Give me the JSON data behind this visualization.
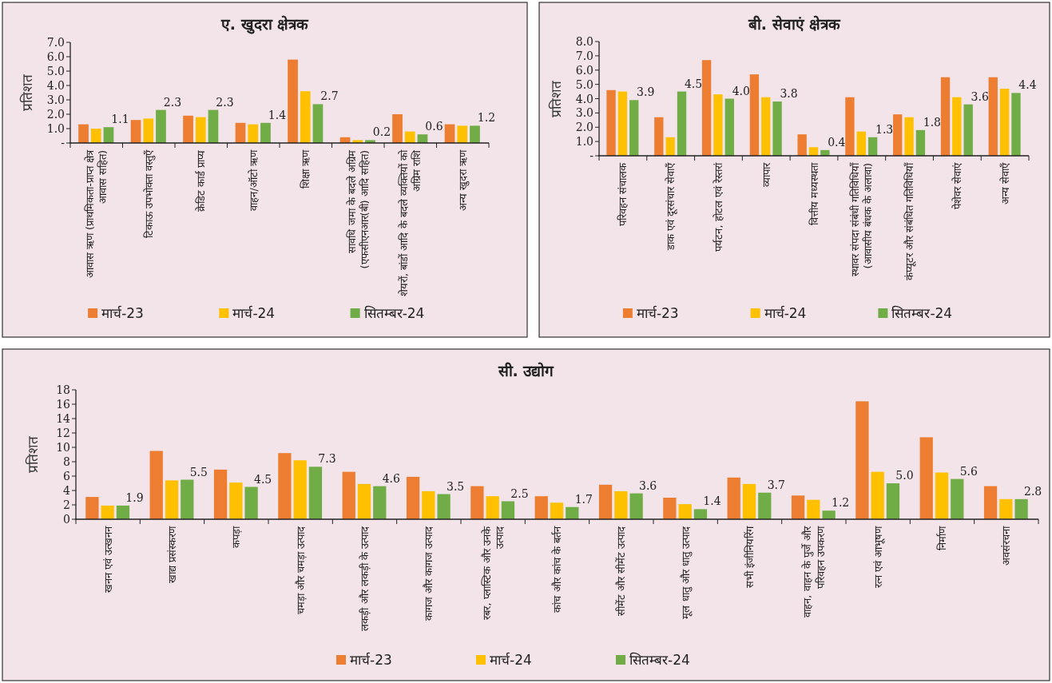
{
  "chart_data": [
    {
      "type": "bar",
      "title": "ए. खुदरा क्षेत्रक",
      "ylabel": "प्रतिशत",
      "categories": [
        "आवास ऋण (प्राथमिकता-प्राप्त क्षेत्र आवास सहित)",
        "टिकाऊ उपभोक्ता वस्तुएँ",
        "क्रेडिट कार्ड प्राप्य",
        "वाहन/ऑटो ऋण",
        "शिक्षा ऋण",
        "सावधि जमा के बदले अग्रिम (एफसीएनआर(बी) आदि सहित)",
        "शेयरों, बांडों आदि के बदले व्यक्तियों को अग्रिम राशि",
        "अन्य खुदरा ऋण"
      ],
      "series": [
        {
          "name": "मार्च-23",
          "color": "#ed7d31",
          "values": [
            1.3,
            1.6,
            1.9,
            1.4,
            5.8,
            0.4,
            2.0,
            1.3
          ]
        },
        {
          "name": "मार्च-24",
          "color": "#ffc000",
          "values": [
            1.0,
            1.7,
            1.8,
            1.3,
            3.6,
            0.2,
            0.8,
            1.2
          ]
        },
        {
          "name": "सितम्बर-24",
          "color": "#70ad47",
          "values": [
            1.1,
            2.3,
            2.3,
            1.4,
            2.7,
            0.2,
            0.6,
            1.2
          ],
          "value_labels": [
            "1.1",
            "2.3",
            "2.3",
            "1.4",
            "2.7",
            "0.2",
            "0.6",
            "1.2"
          ]
        }
      ],
      "ylim": [
        0,
        7
      ],
      "yticks": [
        {
          "value": 0,
          "label": "-"
        },
        {
          "value": 1,
          "label": "1.0"
        },
        {
          "value": 2,
          "label": "2.0"
        },
        {
          "value": 3,
          "label": "3.0"
        },
        {
          "value": 4,
          "label": "4.0"
        },
        {
          "value": 5,
          "label": "5.0"
        },
        {
          "value": 6,
          "label": "6.0"
        },
        {
          "value": 7,
          "label": "7.0"
        }
      ],
      "legend": "bottom"
    },
    {
      "type": "bar",
      "title": "बी. सेवाएं क्षेत्रक",
      "ylabel": "प्रतिशत",
      "categories": [
        "परिवहन संचालक",
        "डाक एवं दूरसंचार सेवाएँ",
        "पर्यटन, होटल एवं रेस्तरां",
        "व्यापार",
        "वित्तीय मध्यस्थता",
        "स्थावर संपदा संबंधी गतिविधियाँ (आवासीय बंधक के अलावा)",
        "कंप्यूटर और संबंधित गतिविधियाँ",
        "पेशेवर सेवाएं",
        "अन्य सेवाएँ"
      ],
      "series": [
        {
          "name": "मार्च-23",
          "color": "#ed7d31",
          "values": [
            4.6,
            2.7,
            6.7,
            5.7,
            1.5,
            4.1,
            2.9,
            5.5,
            5.5
          ]
        },
        {
          "name": "मार्च-24",
          "color": "#ffc000",
          "values": [
            4.5,
            1.3,
            4.3,
            4.1,
            0.6,
            1.7,
            2.7,
            4.1,
            4.7
          ]
        },
        {
          "name": "सितम्बर-24",
          "color": "#70ad47",
          "values": [
            3.9,
            4.5,
            4.0,
            3.8,
            0.4,
            1.3,
            1.8,
            3.6,
            4.4
          ],
          "value_labels": [
            "3.9",
            "4.5",
            "4.0",
            "3.8",
            "0.4",
            "1.3",
            "1.8",
            "3.6",
            "4.4"
          ]
        }
      ],
      "ylim": [
        0,
        8
      ],
      "yticks": [
        {
          "value": 0,
          "label": "-"
        },
        {
          "value": 1,
          "label": "1.0"
        },
        {
          "value": 2,
          "label": "2.0"
        },
        {
          "value": 3,
          "label": "3.0"
        },
        {
          "value": 4,
          "label": "4.0"
        },
        {
          "value": 5,
          "label": "5.0"
        },
        {
          "value": 6,
          "label": "6.0"
        },
        {
          "value": 7,
          "label": "7.0"
        },
        {
          "value": 8,
          "label": "8.0"
        }
      ],
      "legend": "bottom"
    },
    {
      "type": "bar",
      "title": "सी. उद्योग",
      "ylabel": "प्रतिशत",
      "categories": [
        "खनन एवं उत्खनन",
        "खाद्य प्रसंस्करण",
        "कपड़ा",
        "चमड़ा और चमड़ा उत्पाद",
        "लकड़ी और लकड़ी के उत्पाद",
        "कागज और कागज उत्पाद",
        "रबर, प्लास्टिक और उनके उत्पाद",
        "कांच और कांच के बर्तन",
        "सीमेंट और सीमेंट उत्पाद",
        "मूल धातु और धातु उत्पाद",
        "सभी इंजीनियरिंग",
        "वाहन, वाहन के पुर्जे और परिवहन उपकरण",
        "रत्न एवं आभूषण",
        "निर्माण",
        "अवसंरचना"
      ],
      "series": [
        {
          "name": "मार्च-23",
          "color": "#ed7d31",
          "values": [
            3.1,
            9.5,
            6.9,
            9.2,
            6.6,
            5.9,
            4.6,
            3.2,
            4.8,
            3.0,
            5.8,
            3.3,
            16.4,
            11.4,
            4.6
          ]
        },
        {
          "name": "मार्च-24",
          "color": "#ffc000",
          "values": [
            1.9,
            5.4,
            5.1,
            8.2,
            4.9,
            3.9,
            3.2,
            2.3,
            3.9,
            2.1,
            4.9,
            2.7,
            6.6,
            6.5,
            2.8
          ]
        },
        {
          "name": "सितम्बर-24",
          "color": "#70ad47",
          "values": [
            1.9,
            5.5,
            4.5,
            7.3,
            4.6,
            3.5,
            2.5,
            1.7,
            3.6,
            1.4,
            3.7,
            1.2,
            5.0,
            5.6,
            2.8
          ],
          "value_labels": [
            "1.9",
            "5.5",
            "4.5",
            "7.3",
            "4.6",
            "3.5",
            "2.5",
            "1.7",
            "3.6",
            "1.4",
            "3.7",
            "1.2",
            "5.0",
            "5.6",
            "2.8"
          ]
        }
      ],
      "ylim": [
        0,
        18
      ],
      "yticks": [
        0,
        2,
        4,
        6,
        8,
        10,
        12,
        14,
        16,
        18
      ],
      "legend": "bottom"
    }
  ]
}
